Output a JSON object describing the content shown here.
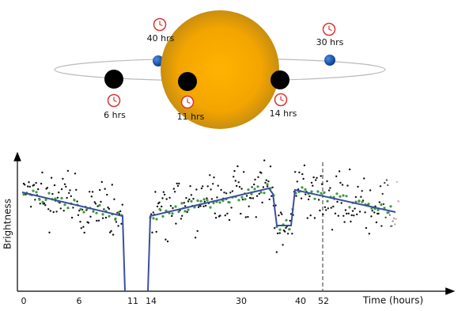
{
  "orbit": {
    "planets": [
      {
        "label": "40 hrs"
      },
      {
        "label": "30 hrs"
      },
      {
        "label": "6 hrs"
      },
      {
        "label": "11 hrs"
      },
      {
        "label": "14 hrs"
      }
    ]
  },
  "light_curve": {
    "y_label": "Brightness",
    "x_label": "Time (hours)",
    "x_ticks": [
      "0",
      "6",
      "11",
      "14",
      "30",
      "40",
      "52"
    ]
  }
}
